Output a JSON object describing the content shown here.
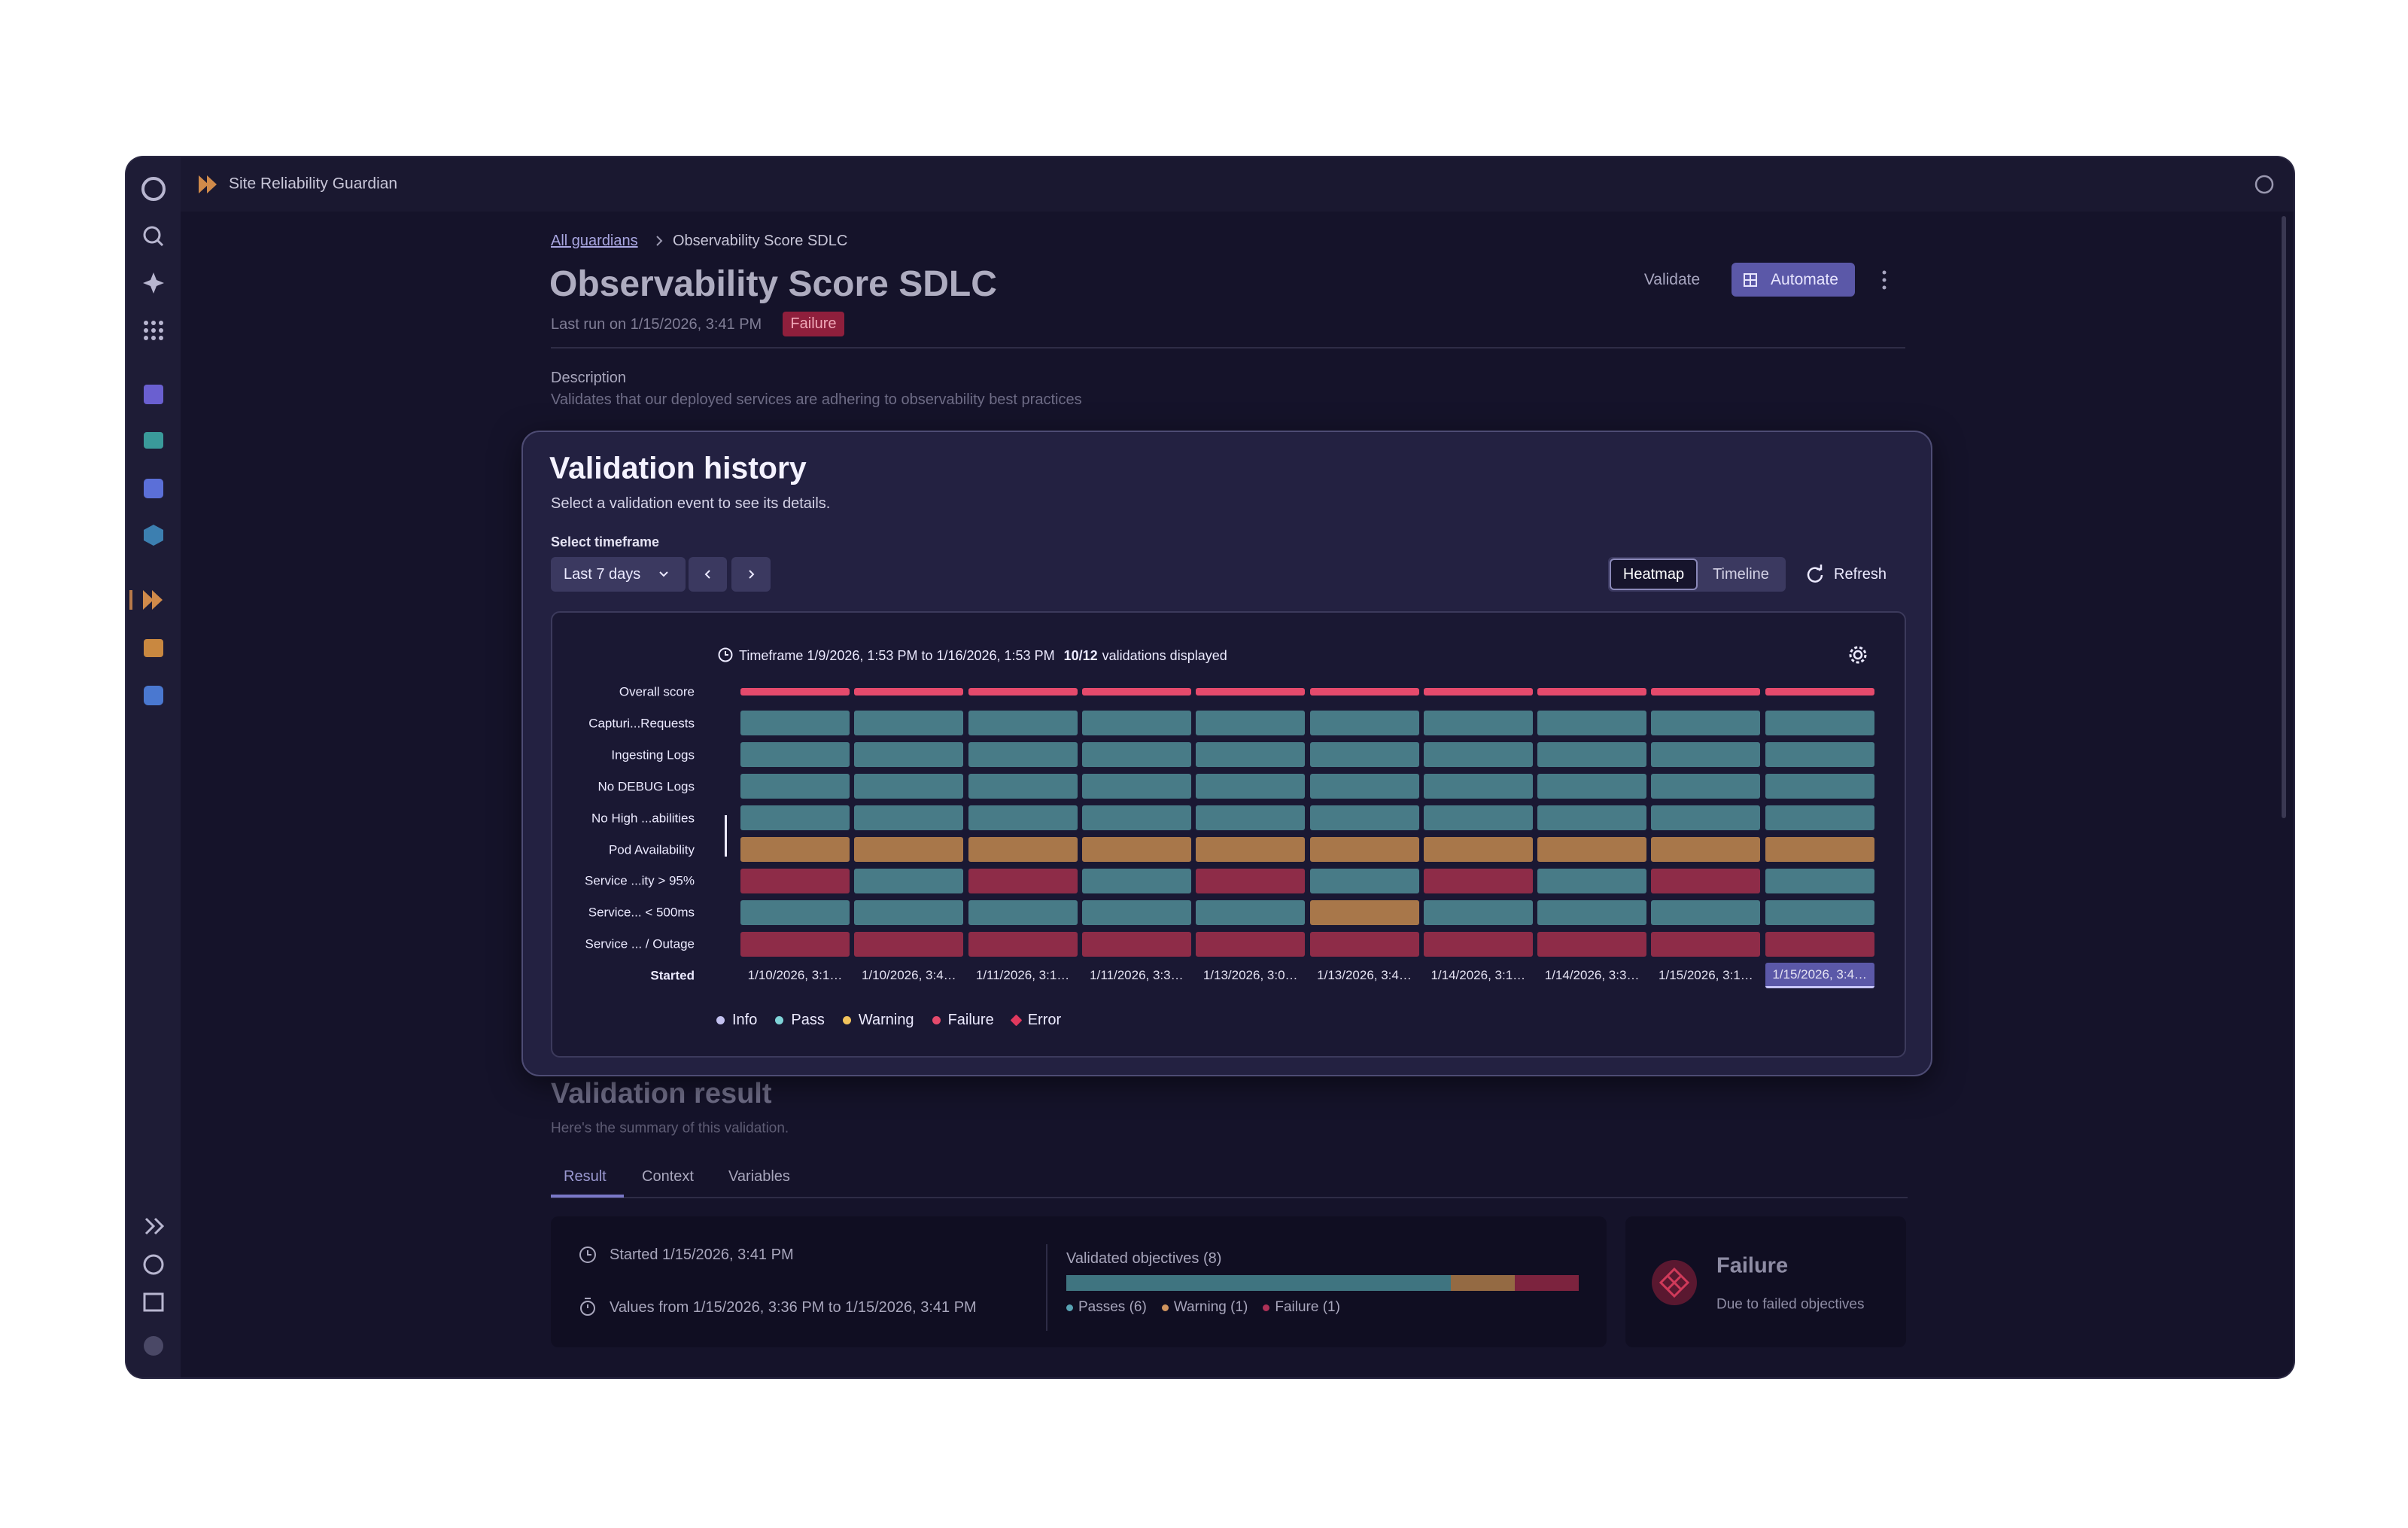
{
  "app": {
    "name": "Site Reliability Guardian"
  },
  "breadcrumb": {
    "link": "All guardians",
    "current": "Observability Score SDLC"
  },
  "header": {
    "title": "Observability Score SDLC",
    "last_run": "Last run on 1/15/2026, 3:41 PM",
    "status": "Failure",
    "actions": [
      "Validate",
      "Automate"
    ]
  },
  "description": {
    "label": "Description",
    "text": "Validates that our deployed services are adhering to observability best practices"
  },
  "history": {
    "title": "Validation history",
    "subtitle": "Select a validation event to see its details.",
    "timeframe_label": "Select timeframe",
    "timeframe": "Last 7 days",
    "views": [
      "Heatmap",
      "Timeline"
    ],
    "selected_view": "Heatmap",
    "refresh": "Refresh",
    "range": "Timeframe 1/9/2026, 1:53 PM to 1/16/2026, 1:53 PM",
    "count": "10/12",
    "count_suffix": "validations displayed",
    "heatmap": {
      "rows": [
        {
          "label": "Overall score",
          "cells": [
            "Failure",
            "Failure",
            "Failure",
            "Failure",
            "Failure",
            "Failure",
            "Failure",
            "Failure",
            "Failure",
            "Failure"
          ]
        },
        {
          "label": "Capturi...Requests",
          "cells": [
            "Pass",
            "Pass",
            "Pass",
            "Pass",
            "Pass",
            "Pass",
            "Pass",
            "Pass",
            "Pass",
            "Pass"
          ]
        },
        {
          "label": "Ingesting Logs",
          "cells": [
            "Pass",
            "Pass",
            "Pass",
            "Pass",
            "Pass",
            "Pass",
            "Pass",
            "Pass",
            "Pass",
            "Pass"
          ]
        },
        {
          "label": "No DEBUG Logs",
          "cells": [
            "Pass",
            "Pass",
            "Pass",
            "Pass",
            "Pass",
            "Pass",
            "Pass",
            "Pass",
            "Pass",
            "Pass"
          ]
        },
        {
          "label": "No High ...abilities",
          "cells": [
            "Pass",
            "Pass",
            "Pass",
            "Pass",
            "Pass",
            "Pass",
            "Pass",
            "Pass",
            "Pass",
            "Pass"
          ]
        },
        {
          "label": "Pod Availability",
          "cells": [
            "Warning",
            "Warning",
            "Warning",
            "Warning",
            "Warning",
            "Warning",
            "Warning",
            "Warning",
            "Warning",
            "Warning"
          ]
        },
        {
          "label": "Service ...ity > 95%",
          "cells": [
            "Failure",
            "Pass",
            "Failure",
            "Pass",
            "Failure",
            "Pass",
            "Failure",
            "Pass",
            "Failure",
            "Pass"
          ]
        },
        {
          "label": "Service... < 500ms",
          "cells": [
            "Pass",
            "Pass",
            "Pass",
            "Pass",
            "Pass",
            "Warning",
            "Pass",
            "Pass",
            "Pass",
            "Pass"
          ]
        },
        {
          "label": "Service ... / Outage",
          "cells": [
            "Failure",
            "Failure",
            "Failure",
            "Failure",
            "Failure",
            "Failure",
            "Failure",
            "Failure",
            "Failure",
            "Failure"
          ]
        }
      ],
      "started_label": "Started",
      "started": [
        "1/10/2026, 3:1…",
        "1/10/2026, 3:4…",
        "1/11/2026, 3:1…",
        "1/11/2026, 3:3…",
        "1/13/2026, 3:0…",
        "1/13/2026, 3:4…",
        "1/14/2026, 3:1…",
        "1/14/2026, 3:3…",
        "1/15/2026, 3:1…",
        "1/15/2026, 3:4…"
      ],
      "selected": 9
    },
    "legend": [
      {
        "name": "Info",
        "color": "#c3c1f0",
        "shape": "dot"
      },
      {
        "name": "Pass",
        "color": "#7fd3d8",
        "shape": "dot",
        "cell_color": "#487b87"
      },
      {
        "name": "Warning",
        "color": "#f2c35c",
        "shape": "dot",
        "cell_color": "#a8774a"
      },
      {
        "name": "Failure",
        "color": "#e54a6c",
        "shape": "dot",
        "cell_color": "#8e2c48"
      },
      {
        "name": "Error",
        "color": "#e0395e",
        "shape": "diamond"
      }
    ]
  },
  "result": {
    "title": "Validation result",
    "subtitle": "Here's the summary of this validation.",
    "tabs": [
      "Result",
      "Context",
      "Variables"
    ],
    "active_tab": "Result",
    "started": "Started 1/15/2026, 3:41 PM",
    "values": "Values from 1/15/2026, 3:36 PM to 1/15/2026, 3:41 PM",
    "objectives": {
      "title": "Validated objectives (8)",
      "segments": [
        {
          "label": "Passes (6)",
          "value": 6,
          "color": "#3f7480"
        },
        {
          "label": "Warning (1)",
          "value": 1,
          "color": "#946a43"
        },
        {
          "label": "Failure (1)",
          "value": 1,
          "color": "#7c233e"
        }
      ]
    },
    "verdict": "Failure",
    "verdict_note": "Due to failed objectives"
  }
}
